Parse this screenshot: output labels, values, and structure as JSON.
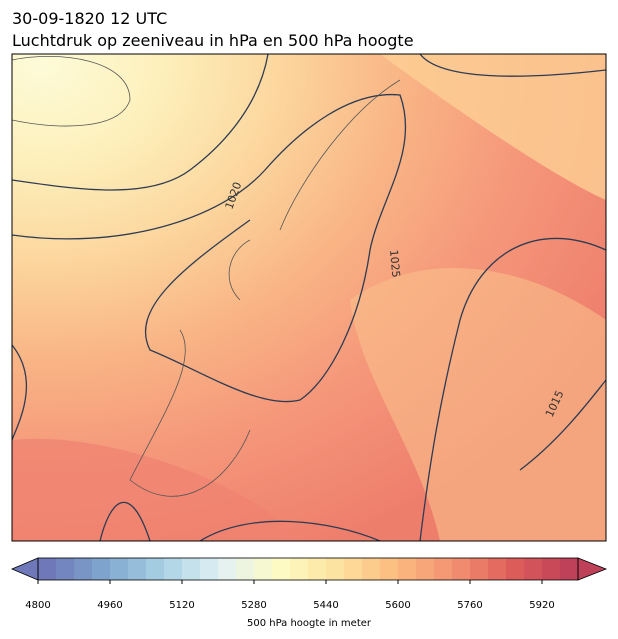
{
  "header": {
    "date": "30-09-1820 12 UTC",
    "title": "Luchtdruk op zeeniveau in hPa en 500 hPa hoogte"
  },
  "contour_labels": [
    "1020",
    "1025",
    "1015"
  ],
  "colorbar": {
    "label": "500 hPa hoogte in meter",
    "lim": [
      4800,
      6000
    ],
    "step": 40,
    "ticks": [
      4800,
      4960,
      5120,
      5280,
      5440,
      5600,
      5760,
      5920
    ],
    "colors": [
      "#6f78b8",
      "#7fa6cd",
      "#a9d2e4",
      "#e2f1f4",
      "#fdfbc4",
      "#fde2a0",
      "#fcbc80",
      "#f39272",
      "#de5e5a",
      "#bf4059"
    ]
  }
}
